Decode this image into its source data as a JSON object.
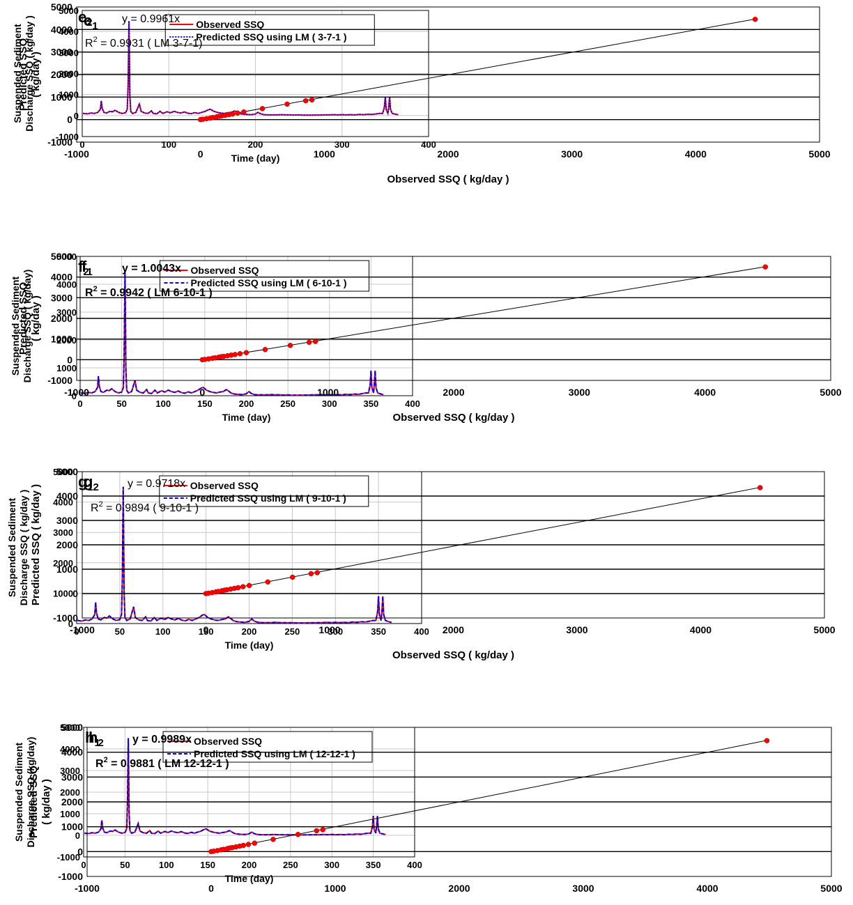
{
  "chart_data": [
    {
      "id": "e1",
      "type": "line",
      "panel_label": "e",
      "panel_sub": "1",
      "xlabel": "Time (day)",
      "ylabel": [
        "Suspended Sediment",
        "Discharge SSQ ( kg/day )"
      ],
      "xlim": [
        0,
        400
      ],
      "ylim": [
        -1000,
        5000
      ],
      "xticks": [
        0,
        100,
        200,
        300,
        400
      ],
      "yticks": [
        -1000,
        0,
        1000,
        2000,
        3000,
        4000,
        5000
      ],
      "grid": true,
      "legend_position": "top-center",
      "series": [
        {
          "name": "Observed SSQ",
          "color": "#ff0000",
          "dash": "solid"
        },
        {
          "name": "Predicted SSQ using LM ( 3-7-1 )",
          "color": "#0000ff",
          "dash": "dotted"
        }
      ]
    },
    {
      "id": "e2",
      "type": "scatter",
      "panel_label": "e",
      "panel_sub": "2",
      "xlabel": "Observed SSQ ( kg/day )",
      "ylabel": [
        "Predicted SSQ",
        "( kg/day )"
      ],
      "xlim": [
        -1000,
        5000
      ],
      "ylim": [
        -1000,
        5000
      ],
      "xticks": [
        -1000,
        0,
        1000,
        2000,
        3000,
        4000,
        5000
      ],
      "yticks": [
        -1000,
        0,
        1000,
        2000,
        3000,
        4000,
        5000
      ],
      "equation": "y = 0.9961x",
      "r2_value": " = 0.9931 ( LM 3-7-1)",
      "slope": 0.9961,
      "bold_annotations": false
    },
    {
      "id": "f1",
      "type": "line",
      "panel_label": "f",
      "panel_sub": "1",
      "xlabel": "Time (day)",
      "ylabel": [
        "Suspended Sediment",
        "Discharge SSQ  ( kg/day)"
      ],
      "xlim": [
        0,
        400
      ],
      "ylim": [
        0,
        5000
      ],
      "xticks": [
        0,
        50,
        100,
        150,
        200,
        250,
        300,
        350,
        400
      ],
      "yticks": [
        0,
        1000,
        2000,
        3000,
        4000,
        5000
      ],
      "grid": true,
      "legend_position": "top-center",
      "series": [
        {
          "name": "Observed SSQ",
          "color": "#ff0000",
          "dash": "solid"
        },
        {
          "name": "Predicted SSQ using LM ( 6-10-1 )",
          "color": "#0000ff",
          "dash": "dashed"
        }
      ]
    },
    {
      "id": "f2",
      "type": "scatter",
      "panel_label": "f",
      "panel_sub": "2",
      "xlabel": "Observed SSQ ( kg/day )",
      "ylabel": [
        "Predicted SSQ",
        "( kg/day )"
      ],
      "xlim": [
        -1000,
        5000
      ],
      "ylim": [
        -1000,
        5000
      ],
      "xticks": [
        -1000,
        0,
        1000,
        2000,
        3000,
        4000,
        5000
      ],
      "yticks": [
        -1000,
        0,
        1000,
        2000,
        3000,
        4000,
        5000
      ],
      "equation": "y = 1.0043x",
      "r2_value": " = 0.9942 ( LM 6-10-1 )",
      "slope": 1.0043,
      "bold_annotations": true
    },
    {
      "id": "g1",
      "type": "line",
      "panel_label": "g",
      "panel_sub": "1",
      "xlabel": "Time (day)",
      "ylabel": [
        "Suspended Sediment",
        "Discharge SSQ  ( kg/day )"
      ],
      "xlim": [
        0,
        400
      ],
      "ylim": [
        0,
        5000
      ],
      "xticks": [
        0,
        50,
        100,
        150,
        200,
        250,
        300,
        350,
        400
      ],
      "yticks": [
        0,
        1000,
        2000,
        3000,
        4000,
        5000
      ],
      "grid": true,
      "legend_position": "top-center",
      "series": [
        {
          "name": "Observed SSQ",
          "color": "#ff0000",
          "dash": "solid"
        },
        {
          "name": "Predicted SSQ using LM ( 9-10-1 )",
          "color": "#0000ff",
          "dash": "dashed"
        }
      ]
    },
    {
      "id": "g2",
      "type": "scatter",
      "panel_label": "g",
      "panel_sub": "2",
      "xlabel": "Observed SSQ ( kg/day )",
      "ylabel": [
        "Predicted SSQ  ( kg/day )"
      ],
      "xlim": [
        -1000,
        5000
      ],
      "ylim": [
        -1000,
        5000
      ],
      "xticks": [
        -1000,
        0,
        1000,
        2000,
        3000,
        4000,
        5000
      ],
      "yticks": [
        -1000,
        0,
        1000,
        2000,
        3000,
        4000,
        5000
      ],
      "equation": "y = 0.9718x",
      "r2_value": " = 0.9894 ( 9-10-1 )",
      "slope": 0.9718,
      "bold_annotations": false
    },
    {
      "id": "h1",
      "type": "line",
      "panel_label": "h",
      "panel_sub": "1",
      "xlabel": "Time (day)",
      "ylabel": [
        "Suspended Sediment",
        "Discharge SSQ (kg/day)"
      ],
      "xlim": [
        0,
        400
      ],
      "ylim": [
        -1000,
        5000
      ],
      "xticks": [
        0,
        50,
        100,
        150,
        200,
        250,
        300,
        350,
        400
      ],
      "yticks": [
        -1000,
        0,
        1000,
        2000,
        3000,
        4000,
        5000
      ],
      "grid": true,
      "legend_position": "top-center",
      "series": [
        {
          "name": "Observed SSQ",
          "color": "#ff0000",
          "dash": "solid"
        },
        {
          "name": "Predicted SSQ using LM ( 12-12-1 )",
          "color": "#0000ff",
          "dash": "dashed"
        }
      ]
    },
    {
      "id": "h2",
      "type": "scatter",
      "panel_label": "h",
      "panel_sub": "2",
      "xlabel": "Observed SSQ ( kg/day )",
      "ylabel": [
        "Predicted SSQ",
        "( kg/day )"
      ],
      "xlim": [
        -1000,
        5000
      ],
      "ylim": [
        -1000,
        5000
      ],
      "xticks": [
        -1000,
        0,
        1000,
        2000,
        3000,
        4000,
        5000
      ],
      "yticks": [
        -1000,
        0,
        1000,
        2000,
        3000,
        4000,
        5000
      ],
      "equation": "y = 0.9989x",
      "r2_value": " = 0.9881 ( LM 12-12-1 )",
      "slope": 0.9989,
      "bold_annotations": true
    }
  ],
  "series_points": [
    [
      1,
      100
    ],
    [
      6,
      80
    ],
    [
      10,
      120
    ],
    [
      14,
      100
    ],
    [
      18,
      150
    ],
    [
      21,
      300
    ],
    [
      22,
      700
    ],
    [
      23,
      350
    ],
    [
      25,
      150
    ],
    [
      28,
      120
    ],
    [
      32,
      200
    ],
    [
      35,
      180
    ],
    [
      38,
      250
    ],
    [
      42,
      150
    ],
    [
      46,
      100
    ],
    [
      50,
      130
    ],
    [
      52,
      300
    ],
    [
      53,
      1500
    ],
    [
      54,
      4500
    ],
    [
      55,
      1000
    ],
    [
      56,
      200
    ],
    [
      58,
      100
    ],
    [
      62,
      150
    ],
    [
      66,
      550
    ],
    [
      68,
      200
    ],
    [
      72,
      120
    ],
    [
      76,
      100
    ],
    [
      80,
      220
    ],
    [
      82,
      100
    ],
    [
      86,
      80
    ],
    [
      90,
      200
    ],
    [
      93,
      100
    ],
    [
      98,
      180
    ],
    [
      102,
      130
    ],
    [
      106,
      200
    ],
    [
      110,
      150
    ],
    [
      114,
      120
    ],
    [
      118,
      170
    ],
    [
      122,
      110
    ],
    [
      126,
      90
    ],
    [
      130,
      140
    ],
    [
      134,
      100
    ],
    [
      138,
      150
    ],
    [
      142,
      200
    ],
    [
      146,
      280
    ],
    [
      148,
      300
    ],
    [
      152,
      200
    ],
    [
      156,
      150
    ],
    [
      160,
      120
    ],
    [
      164,
      100
    ],
    [
      168,
      130
    ],
    [
      172,
      150
    ],
    [
      176,
      220
    ],
    [
      178,
      180
    ],
    [
      182,
      90
    ],
    [
      186,
      60
    ],
    [
      190,
      50
    ],
    [
      195,
      40
    ],
    [
      200,
      70
    ],
    [
      203,
      150
    ],
    [
      206,
      80
    ],
    [
      210,
      40
    ],
    [
      215,
      30
    ],
    [
      220,
      30
    ],
    [
      225,
      30
    ],
    [
      230,
      40
    ],
    [
      235,
      30
    ],
    [
      240,
      30
    ],
    [
      245,
      25
    ],
    [
      250,
      30
    ],
    [
      255,
      20
    ],
    [
      260,
      20
    ],
    [
      265,
      20
    ],
    [
      270,
      25
    ],
    [
      275,
      25
    ],
    [
      280,
      30
    ],
    [
      285,
      30
    ],
    [
      290,
      40
    ],
    [
      295,
      30
    ],
    [
      300,
      40
    ],
    [
      305,
      30
    ],
    [
      310,
      40
    ],
    [
      315,
      30
    ],
    [
      320,
      50
    ],
    [
      325,
      40
    ],
    [
      330,
      60
    ],
    [
      335,
      50
    ],
    [
      340,
      80
    ],
    [
      344,
      100
    ],
    [
      347,
      100
    ],
    [
      349,
      400
    ],
    [
      350,
      900
    ],
    [
      351,
      300
    ],
    [
      353,
      100
    ],
    [
      354,
      400
    ],
    [
      355,
      900
    ],
    [
      356,
      300
    ],
    [
      358,
      100
    ],
    [
      362,
      60
    ],
    [
      365,
      40
    ]
  ],
  "scatter_points": [
    [
      0,
      0
    ],
    [
      20,
      15
    ],
    [
      50,
      40
    ],
    [
      80,
      70
    ],
    [
      100,
      90
    ],
    [
      130,
      120
    ],
    [
      150,
      145
    ],
    [
      170,
      160
    ],
    [
      200,
      190
    ],
    [
      230,
      220
    ],
    [
      260,
      250
    ],
    [
      300,
      290
    ],
    [
      350,
      340
    ],
    [
      500,
      490
    ],
    [
      700,
      690
    ],
    [
      850,
      840
    ],
    [
      900,
      880
    ],
    [
      4480,
      4470
    ]
  ]
}
